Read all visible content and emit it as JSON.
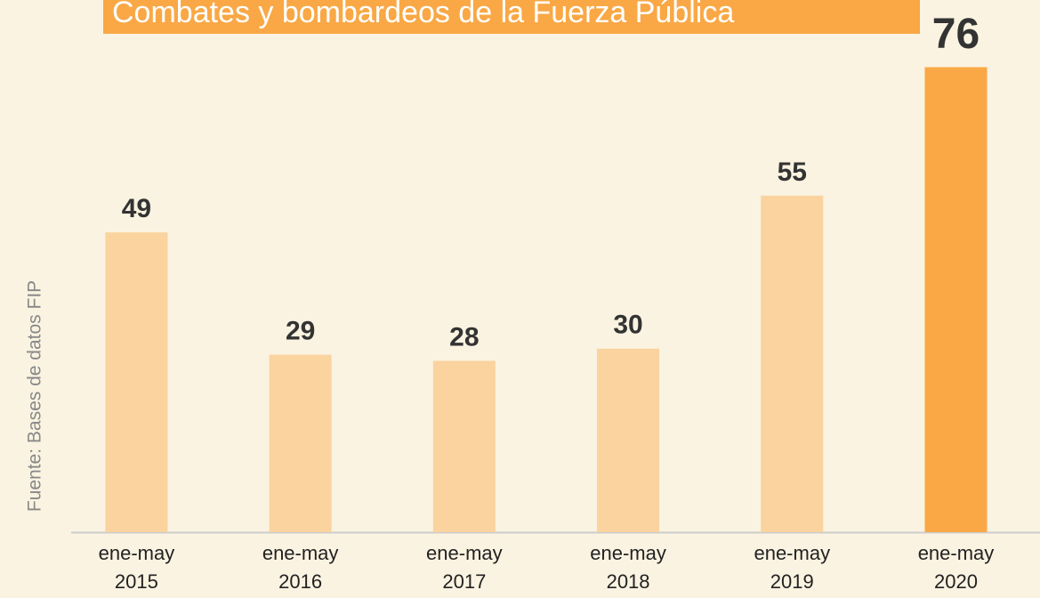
{
  "chart_data": {
    "type": "bar",
    "title": "Combates y bombardeos de la Fuerza Pública",
    "source": "Fuente: Bases de datos FIP",
    "categories": [
      "ene-may 2015",
      "ene-may 2016",
      "ene-may 2017",
      "ene-may 2018",
      "ene-may 2019",
      "ene-may 2020"
    ],
    "values": [
      49,
      29,
      28,
      30,
      55,
      76
    ],
    "colors": [
      "#fad39f",
      "#fad39f",
      "#fad39f",
      "#fad39f",
      "#fad39f",
      "#f9a845"
    ],
    "ylim": [
      0,
      80
    ]
  }
}
